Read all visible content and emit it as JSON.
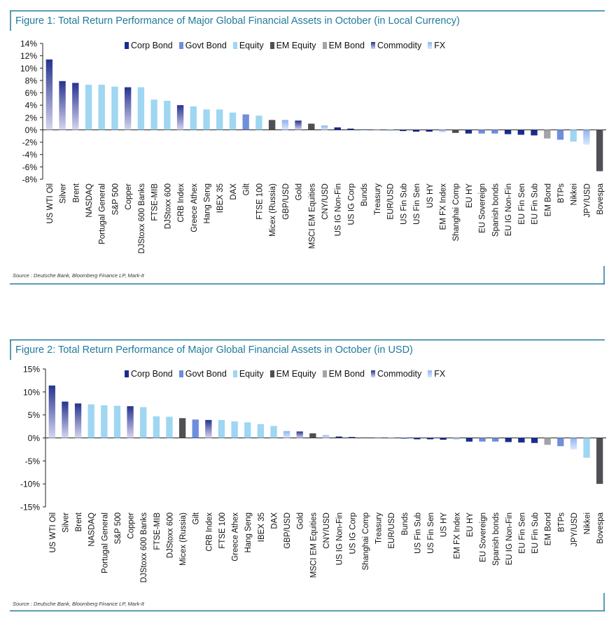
{
  "colors": {
    "frame": "#1f7a9c",
    "Corp Bond": "#1a2d8c",
    "Govt Bond": "#6f8fdc",
    "Equity": "#9fd6f2",
    "EM Equity": "#4f4f55",
    "EM Bond": "#a3a3a8",
    "Commodity": "#26338f",
    "Commodity_light": "#d6d6ef",
    "FX": "#8fb3ef",
    "FX_light": "#dbe8fb"
  },
  "legend": [
    "Corp Bond",
    "Govt Bond",
    "Equity",
    "EM Equity",
    "EM Bond",
    "Commodity",
    "FX"
  ],
  "source": "Source : Deutsche Bank, Bloomberg Finance LP, Mark-It",
  "chart_data": [
    {
      "type": "bar",
      "title": "Figure 1: Total Return Performance of Major Global Financial Assets in October (in Local Currency)",
      "ylim": [
        -8,
        14
      ],
      "yticks": [
        14,
        12,
        10,
        8,
        6,
        4,
        2,
        0,
        -2,
        -4,
        -6,
        -8
      ],
      "ytick_labels": [
        "14%",
        "12%",
        "10%",
        "8%",
        "6%",
        "4%",
        "2%",
        "0%",
        "-2%",
        "-4%",
        "-6%",
        "-8%"
      ],
      "categories": [
        "US WTI Oil",
        "Silver",
        "Brent",
        "NASDAQ",
        "Portugal General",
        "S&P 500",
        "Copper",
        "DJStoxx 600 Banks",
        "FTSE-MIB",
        "DJStoxx 600",
        "CRB Index",
        "Greece Athex",
        "Hang Seng",
        "IBEX 35",
        "DAX",
        "Gilt",
        "FTSE 100",
        "Micex (Russia)",
        "GBP/USD",
        "Gold",
        "MSCI EM Equities",
        "CNY/USD",
        "US IG Non-Fin",
        "US IG Corp",
        "Bunds",
        "Treasury",
        "EUR/USD",
        "US Fin Sub",
        "US Fin Sen",
        "US HY",
        "EM FX Index",
        "Shanghai Comp",
        "EU HY",
        "EU Sovereign",
        "Spanish bonds",
        "EU IG Non-Fin",
        "EU Fin Sen",
        "EU Fin Sub",
        "EM Bond",
        "BTPs",
        "Nikkei",
        "JPY/USD",
        "Bovespa"
      ],
      "values": [
        11.4,
        7.9,
        7.6,
        7.3,
        7.3,
        7.0,
        6.9,
        6.9,
        4.9,
        4.7,
        4.0,
        3.8,
        3.3,
        3.3,
        2.8,
        2.5,
        2.3,
        1.6,
        1.6,
        1.5,
        1.0,
        0.7,
        0.4,
        0.2,
        0.1,
        0.0,
        -0.2,
        -0.2,
        -0.3,
        -0.3,
        -0.4,
        -0.5,
        -0.6,
        -0.6,
        -0.6,
        -0.7,
        -0.8,
        -0.9,
        -1.4,
        -1.6,
        -1.9,
        -2.4,
        -6.7
      ],
      "asset_class": [
        "Commodity",
        "Commodity",
        "Commodity",
        "Equity",
        "Equity",
        "Equity",
        "Commodity",
        "Equity",
        "Equity",
        "Equity",
        "Commodity",
        "Equity",
        "Equity",
        "Equity",
        "Equity",
        "Govt Bond",
        "Equity",
        "EM Equity",
        "FX",
        "Commodity",
        "EM Equity",
        "FX",
        "Corp Bond",
        "Corp Bond",
        "Govt Bond",
        "Govt Bond",
        "FX",
        "Corp Bond",
        "Corp Bond",
        "Corp Bond",
        "FX",
        "EM Equity",
        "Corp Bond",
        "Govt Bond",
        "Govt Bond",
        "Corp Bond",
        "Corp Bond",
        "Corp Bond",
        "EM Bond",
        "Govt Bond",
        "Equity",
        "FX",
        "EM Equity"
      ]
    },
    {
      "type": "bar",
      "title": "Figure 2: Total Return Performance of Major Global Financial Assets in October (in USD)",
      "ylim": [
        -15,
        15
      ],
      "yticks": [
        15,
        10,
        5,
        0,
        -5,
        -10,
        -15
      ],
      "ytick_labels": [
        "15%",
        "10%",
        "5%",
        "0%",
        "-5%",
        "-10%",
        "-15%"
      ],
      "categories": [
        "US WTI Oil",
        "Silver",
        "Brent",
        "NASDAQ",
        "Portugal General",
        "S&P 500",
        "Copper",
        "DJStoxx 600 Banks",
        "FTSE-MIB",
        "DJStoxx 600",
        "Micex (Russia)",
        "Gilt",
        "CRB Index",
        "FTSE 100",
        "Greece Athex",
        "Hang Seng",
        "IBEX 35",
        "DAX",
        "GBP/USD",
        "Gold",
        "MSCI EM Equities",
        "CNY/USD",
        "US IG Non-Fin",
        "US IG Corp",
        "Shanghai Comp",
        "Treasury",
        "EUR/USD",
        "Bunds",
        "US Fin Sub",
        "US Fin Sen",
        "US HY",
        "EM FX Index",
        "EU HY",
        "EU Sovereign",
        "Spanish bonds",
        "EU IG Non-Fin",
        "EU Fin Sen",
        "EU Fin Sub",
        "EM Bond",
        "BTPs",
        "JPY/USD",
        "Nikkei",
        "Bovespa"
      ],
      "values": [
        11.4,
        7.9,
        7.5,
        7.3,
        7.1,
        7.0,
        6.9,
        6.7,
        4.7,
        4.6,
        4.3,
        4.0,
        3.9,
        3.9,
        3.6,
        3.4,
        3.0,
        2.6,
        1.5,
        1.4,
        1.0,
        0.6,
        0.3,
        0.2,
        0.1,
        0.0,
        -0.2,
        -0.2,
        -0.3,
        -0.3,
        -0.4,
        -0.4,
        -0.8,
        -0.8,
        -0.8,
        -0.9,
        -1.0,
        -1.1,
        -1.5,
        -1.8,
        -2.5,
        -4.3,
        -10.0
      ],
      "asset_class": [
        "Commodity",
        "Commodity",
        "Commodity",
        "Equity",
        "Equity",
        "Equity",
        "Commodity",
        "Equity",
        "Equity",
        "Equity",
        "EM Equity",
        "Govt Bond",
        "Commodity",
        "Equity",
        "Equity",
        "Equity",
        "Equity",
        "Equity",
        "FX",
        "Commodity",
        "EM Equity",
        "FX",
        "Corp Bond",
        "Corp Bond",
        "EM Equity",
        "Govt Bond",
        "FX",
        "Govt Bond",
        "Corp Bond",
        "Corp Bond",
        "Corp Bond",
        "FX",
        "Corp Bond",
        "Govt Bond",
        "Govt Bond",
        "Corp Bond",
        "Corp Bond",
        "Corp Bond",
        "EM Bond",
        "Govt Bond",
        "FX",
        "Equity",
        "EM Equity"
      ]
    }
  ]
}
